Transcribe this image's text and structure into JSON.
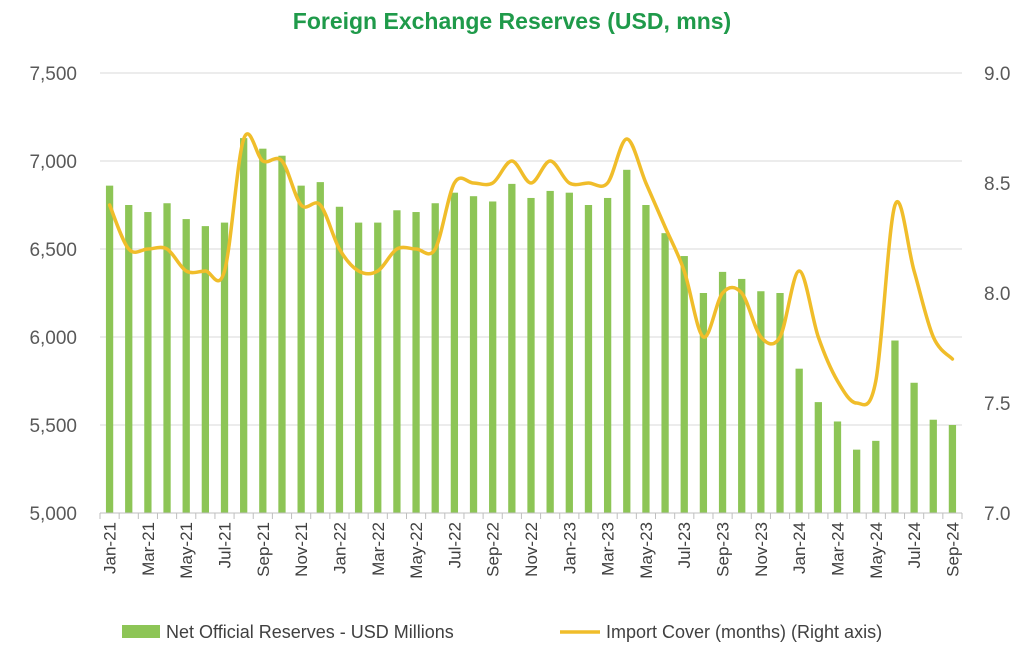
{
  "chart_data": {
    "type": "bar",
    "title": "Foreign Exchange Reserves (USD, mns)",
    "categories": [
      "Jan-21",
      "Feb-21",
      "Mar-21",
      "Apr-21",
      "May-21",
      "Jun-21",
      "Jul-21",
      "Aug-21",
      "Sep-21",
      "Oct-21",
      "Nov-21",
      "Dec-21",
      "Jan-22",
      "Feb-22",
      "Mar-22",
      "Apr-22",
      "May-22",
      "Jun-22",
      "Jul-22",
      "Aug-22",
      "Sep-22",
      "Oct-22",
      "Nov-22",
      "Dec-22",
      "Jan-23",
      "Feb-23",
      "Mar-23",
      "Apr-23",
      "May-23",
      "Jun-23",
      "Jul-23",
      "Aug-23",
      "Sep-23",
      "Oct-23",
      "Nov-23",
      "Dec-23",
      "Jan-24",
      "Feb-24",
      "Mar-24",
      "Apr-24",
      "May-24",
      "Jun-24",
      "Jul-24",
      "Aug-24",
      "Sep-24"
    ],
    "x_tick_labels": [
      "Jan-21",
      "",
      "Mar-21",
      "",
      "May-21",
      "",
      "Jul-21",
      "",
      "Sep-21",
      "",
      "Nov-21",
      "",
      "Jan-22",
      "",
      "Mar-22",
      "",
      "May-22",
      "",
      "Jul-22",
      "",
      "Sep-22",
      "",
      "Nov-22",
      "",
      "Jan-23",
      "",
      "Mar-23",
      "",
      "May-23",
      "",
      "Jul-23",
      "",
      "Sep-23",
      "",
      "Nov-23",
      "",
      "Jan-24",
      "",
      "Mar-24",
      "",
      "May-24",
      "",
      "Jul-24",
      "",
      "Sep-24"
    ],
    "series": [
      {
        "name": "Net Official Reserves - USD Millions",
        "type": "bar",
        "axis": "left",
        "values": [
          6860,
          6750,
          6710,
          6760,
          6670,
          6630,
          6650,
          7130,
          7070,
          7030,
          6860,
          6880,
          6740,
          6650,
          6650,
          6720,
          6710,
          6760,
          6820,
          6800,
          6770,
          6870,
          6790,
          6830,
          6820,
          6750,
          6790,
          6950,
          6750,
          6590,
          6460,
          6250,
          6370,
          6330,
          6260,
          6250,
          5820,
          5630,
          5520,
          5360,
          5410,
          5980,
          5740,
          5530,
          5500
        ]
      },
      {
        "name": "Import Cover (months) (Right axis)",
        "type": "line",
        "axis": "right",
        "values": [
          8.4,
          8.2,
          8.2,
          8.2,
          8.1,
          8.1,
          8.1,
          8.7,
          8.6,
          8.6,
          8.4,
          8.4,
          8.2,
          8.1,
          8.1,
          8.2,
          8.2,
          8.2,
          8.5,
          8.5,
          8.5,
          8.6,
          8.5,
          8.6,
          8.5,
          8.5,
          8.5,
          8.7,
          8.5,
          8.3,
          8.1,
          7.8,
          8.0,
          8.0,
          7.8,
          7.8,
          8.1,
          7.8,
          7.6,
          7.5,
          7.6,
          8.4,
          8.1,
          7.8,
          7.7
        ]
      }
    ],
    "ylim_left": [
      5000,
      7500
    ],
    "yticks_left": [
      "5,000",
      "5,500",
      "6,000",
      "6,500",
      "7,000",
      "7,500"
    ],
    "ylim_right": [
      7.0,
      9.0
    ],
    "yticks_right": [
      "7.0",
      "7.5",
      "8.0",
      "8.5",
      "9.0"
    ],
    "grid": true,
    "legend_position": "bottom",
    "colors": {
      "title": "#1f9a4a",
      "bars": "#8dc556",
      "line": "#f0bd2a",
      "grid": "#d9d9d9",
      "axis_text": "#595959"
    }
  }
}
